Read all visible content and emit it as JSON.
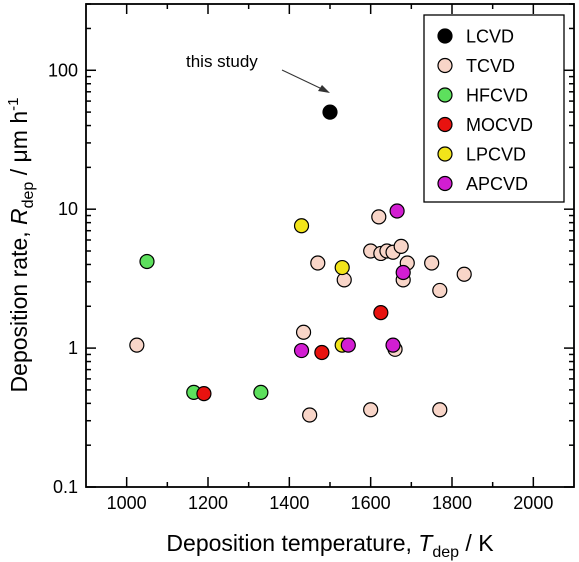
{
  "chart_data": {
    "type": "scatter",
    "xlabel": {
      "text": "Deposition temperature, ",
      "var_main": "T",
      "var_sub": "dep",
      "unit": " / K"
    },
    "ylabel": {
      "text": "Deposition rate, ",
      "var_main": "R",
      "var_sub": "dep",
      "unit": " / μm h",
      "unit_sup": "-1"
    },
    "xlim": [
      900,
      2100
    ],
    "ylim": [
      0.1,
      300
    ],
    "yscale": "log",
    "xticks": [
      1000,
      1200,
      1400,
      1600,
      1800,
      2000
    ],
    "xtick_labels": [
      "1000",
      "1200",
      "1400",
      "1600",
      "1800",
      "2000"
    ],
    "yticks": [
      0.1,
      1,
      10,
      100
    ],
    "ytick_labels": [
      "0.1",
      "1",
      "10",
      "100"
    ],
    "grid": false,
    "legend_position": "top-right",
    "annotation": {
      "text": "this study",
      "points_to": [
        1500,
        50
      ]
    },
    "series": [
      {
        "name": "LCVD",
        "color": "#000000",
        "points": [
          [
            1500,
            50
          ]
        ]
      },
      {
        "name": "TCVD",
        "color": "#F8D5C8",
        "points": [
          [
            1025,
            1.05
          ],
          [
            1435,
            1.3
          ],
          [
            1450,
            0.33
          ],
          [
            1470,
            4.1
          ],
          [
            1535,
            3.1
          ],
          [
            1600,
            5.0
          ],
          [
            1600,
            0.36
          ],
          [
            1620,
            8.8
          ],
          [
            1625,
            4.8
          ],
          [
            1640,
            5.0
          ],
          [
            1655,
            4.9
          ],
          [
            1660,
            0.98
          ],
          [
            1675,
            5.4
          ],
          [
            1680,
            3.1
          ],
          [
            1690,
            4.1
          ],
          [
            1750,
            4.1
          ],
          [
            1770,
            2.6
          ],
          [
            1770,
            0.36
          ],
          [
            1830,
            3.4
          ]
        ]
      },
      {
        "name": "HFCVD",
        "color": "#5DE05D",
        "points": [
          [
            1050,
            4.2
          ],
          [
            1165,
            0.48
          ],
          [
            1330,
            0.48
          ]
        ]
      },
      {
        "name": "MOCVD",
        "color": "#E8120F",
        "points": [
          [
            1190,
            0.47
          ],
          [
            1480,
            0.93
          ],
          [
            1625,
            1.8
          ]
        ]
      },
      {
        "name": "LPCVD",
        "color": "#F2E41A",
        "points": [
          [
            1430,
            7.6
          ],
          [
            1530,
            3.8
          ],
          [
            1530,
            1.05
          ]
        ]
      },
      {
        "name": "APCVD",
        "color": "#D21ED2",
        "points": [
          [
            1430,
            0.96
          ],
          [
            1545,
            1.05
          ],
          [
            1655,
            1.05
          ],
          [
            1665,
            9.7
          ],
          [
            1680,
            3.5
          ]
        ]
      }
    ]
  }
}
